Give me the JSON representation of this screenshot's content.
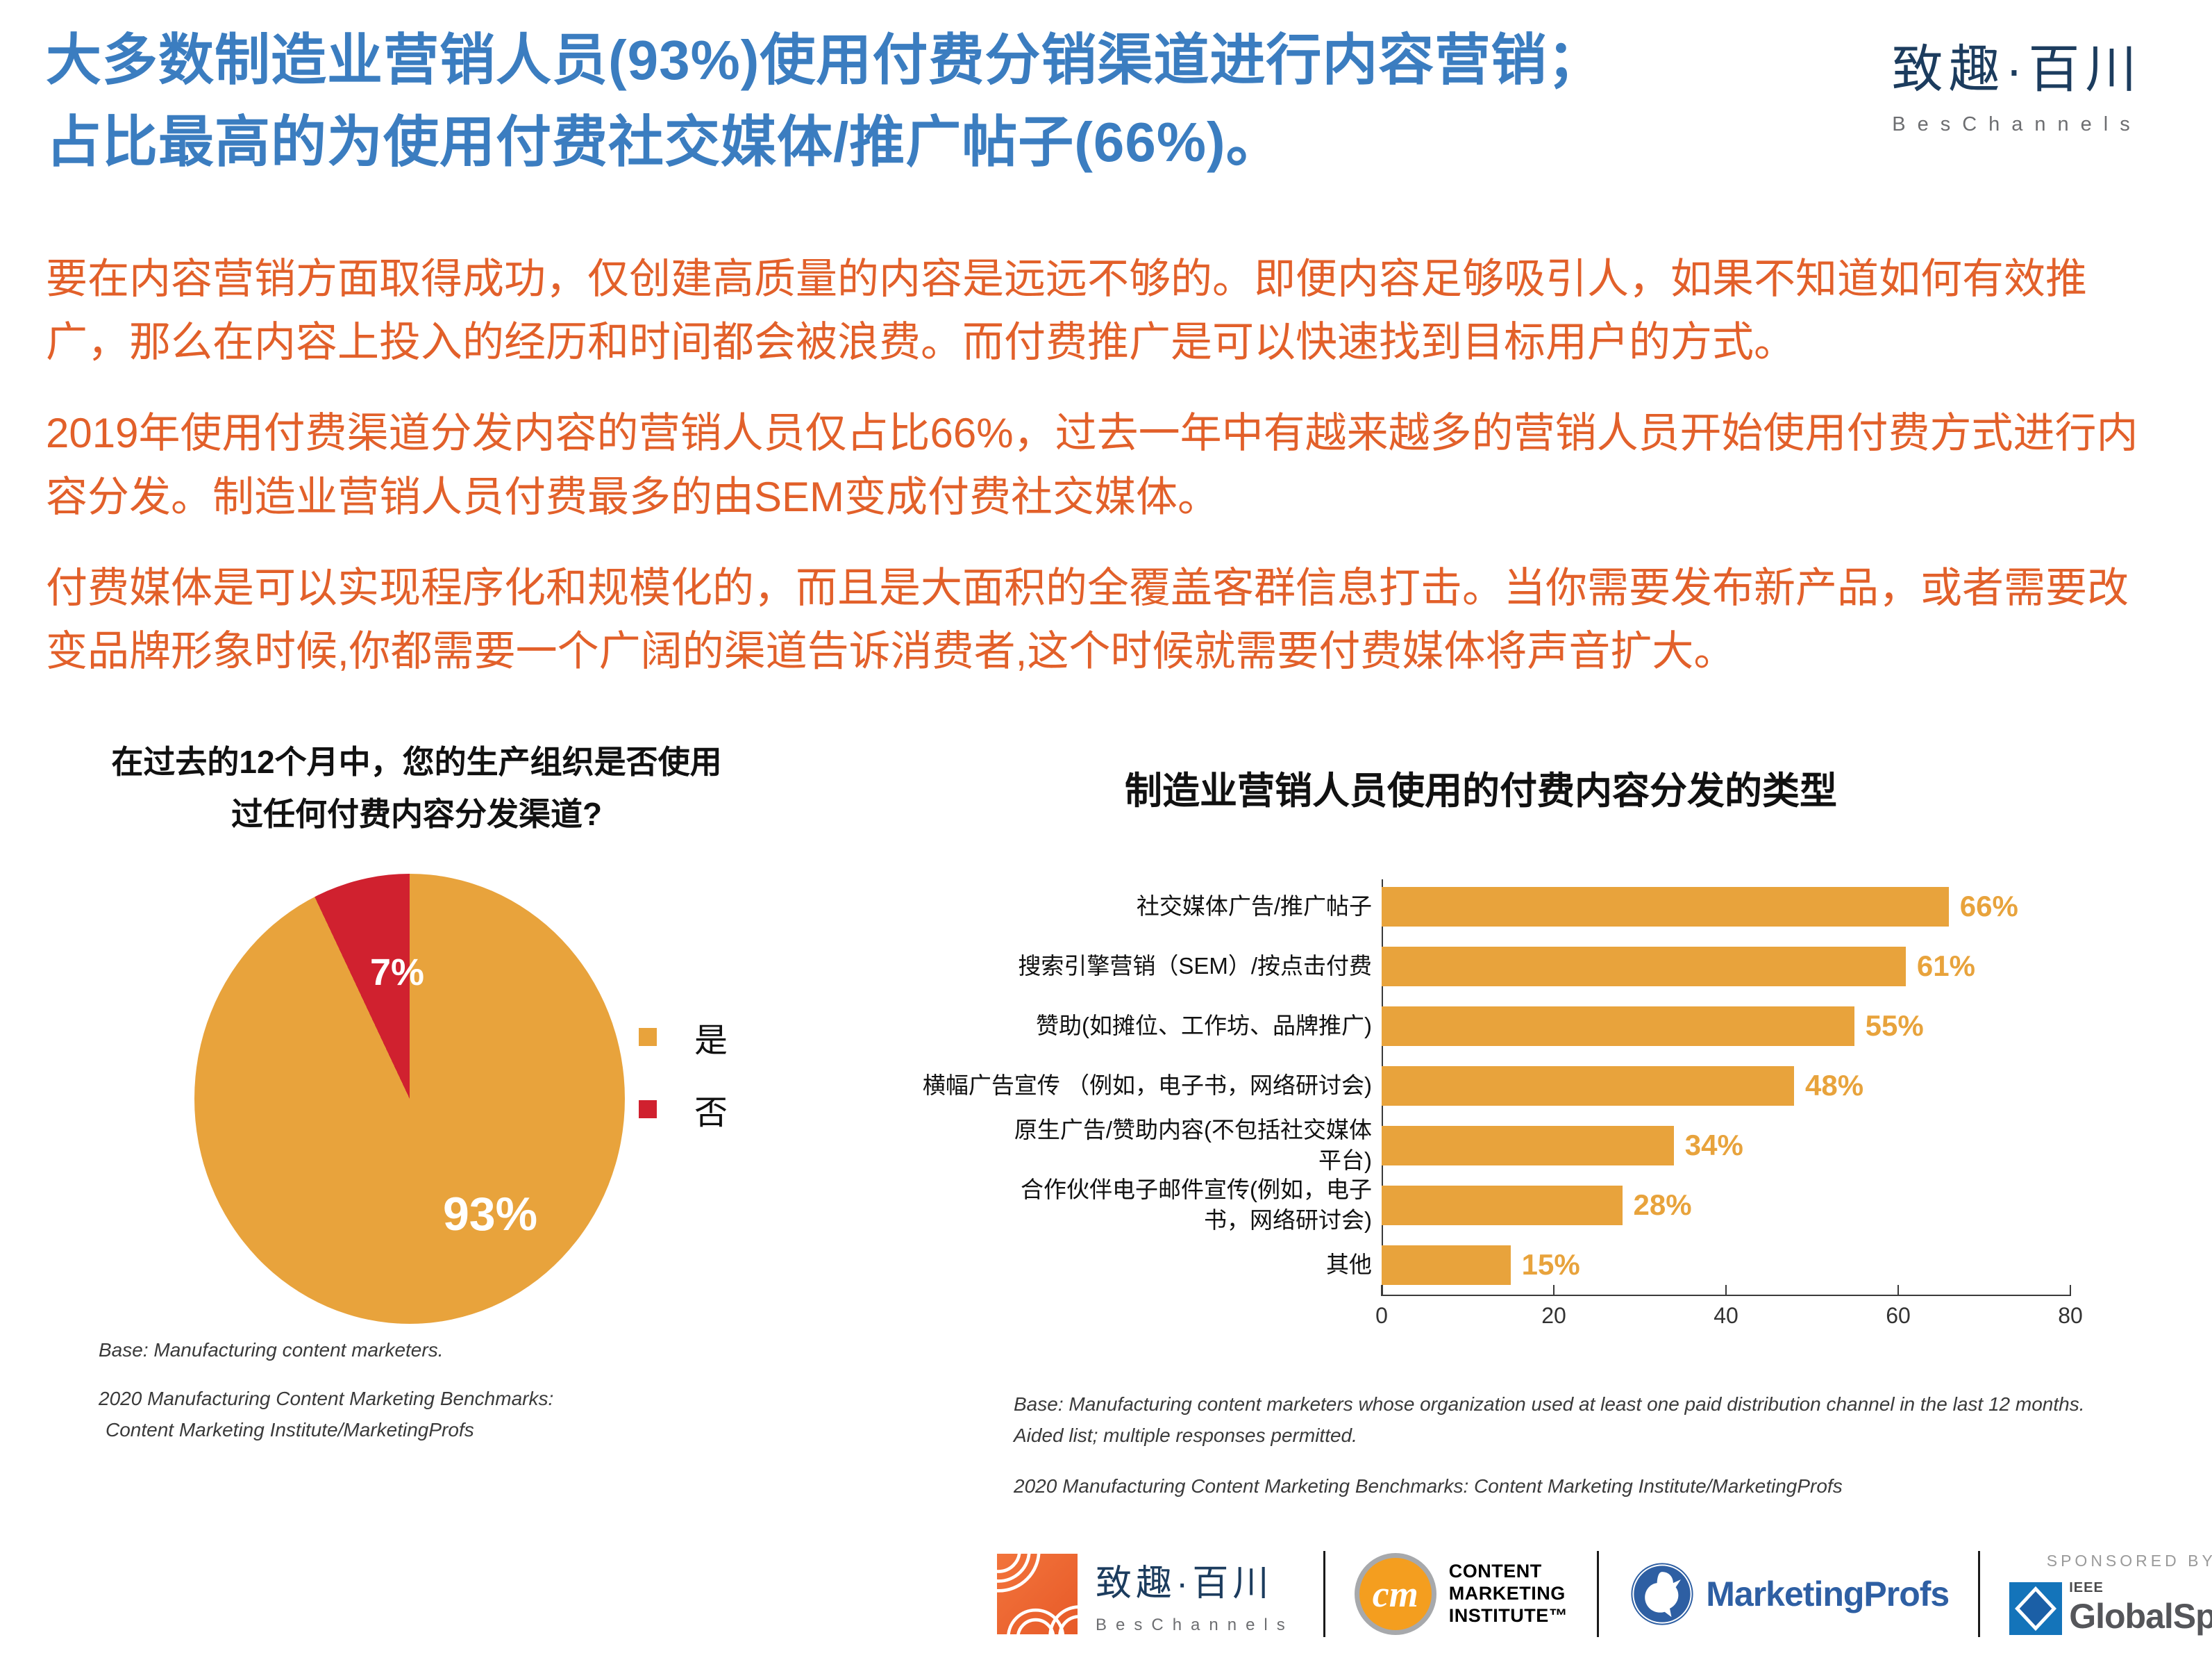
{
  "header": {
    "title_line1": "大多数制造业营销人员(93%)使用付费分销渠道进行内容营销；",
    "title_line2": "占比最高的为使用付费社交媒体/推广帖子(66%)。",
    "brand_cn": "致趣·百川",
    "brand_en": "BesChannels"
  },
  "paragraphs": {
    "p1": "要在内容营销方面取得成功，仅创建高质量的内容是远远不够的。即便内容足够吸引人，如果不知道如何有效推广，那么在内容上投入的经历和时间都会被浪费。而付费推广是可以快速找到目标用户的方式。",
    "p2": "2019年使用付费渠道分发内容的营销人员仅占比66%，过去一年中有越来越多的营销人员开始使用付费方式进行内容分发。制造业营销人员付费最多的由SEM变成付费社交媒体。",
    "p3": "付费媒体是可以实现程序化和规模化的，而且是大面积的全覆盖客群信息打击。当你需要发布新产品，或者需要改变品牌形象时候,你都需要一个广阔的渠道告诉消费者,这个时候就需要付费媒体将声音扩大。"
  },
  "pie_section": {
    "title_line1": "在过去的12个月中，您的生产组织是否使用",
    "title_line2": "过任何付费内容分发渠道?",
    "base_note": "Base: Manufacturing content marketers.",
    "source_line1": "2020 Manufacturing Content Marketing Benchmarks:",
    "source_line2": "Content Marketing Institute/MarketingProfs"
  },
  "bar_section": {
    "title": "制造业营销人员使用的付费内容分发的类型",
    "base_note_line1": "Base: Manufacturing content marketers whose organization used at least one paid distribution channel in the last 12 months.",
    "base_note_line2": "Aided list; multiple responses permitted.",
    "source": "2020 Manufacturing Content Marketing Benchmarks: Content Marketing Institute/MarketingProfs"
  },
  "chart_data": [
    {
      "type": "pie",
      "title": "在过去的12个月中，您的生产组织是否使用过任何付费内容分发渠道?",
      "labels": [
        "是",
        "否"
      ],
      "values": [
        93,
        7
      ],
      "value_labels": [
        "93%",
        "7%"
      ],
      "colors": [
        "#E8A33C",
        "#D0212F"
      ],
      "legend_position": "right"
    },
    {
      "type": "bar",
      "orientation": "horizontal",
      "title": "制造业营销人员使用的付费内容分发的类型",
      "categories": [
        "社交媒体广告/推广帖子",
        "搜索引擎营销（SEM）/按点击付费",
        "赞助(如摊位、工作坊、品牌推广)",
        "横幅广告宣传 （例如，电子书，网络研讨会)",
        "原生广告/赞助内容(不包括社交媒体\n平台)",
        "合作伙伴电子邮件宣传(例如，电子\n书，网络研讨会)",
        "其他"
      ],
      "values": [
        66,
        61,
        55,
        48,
        34,
        28,
        15
      ],
      "value_labels": [
        "66%",
        "61%",
        "55%",
        "48%",
        "34%",
        "28%",
        "15%"
      ],
      "xlim": [
        0,
        80
      ],
      "xticks": [
        0,
        20,
        40,
        60,
        80
      ],
      "bar_color": "#E8A33C",
      "grid": false
    }
  ],
  "colors": {
    "title_blue": "#3B7DC0",
    "body_orange": "#E2602A",
    "chart_orange": "#E8A33C",
    "chart_red": "#D0212F"
  },
  "footer": {
    "bes_cn": "致趣·百川",
    "bes_en": "BesChannels",
    "cmi_monogram": "cm",
    "cmi_line1": "CONTENT",
    "cmi_line2": "MARKETING",
    "cmi_line3": "INSTITUTE™",
    "marketingprofs": "MarketingProfs",
    "sponsored_by": "SPONSORED BY",
    "ieee": "IEEE",
    "globalspec": "GlobalSpec"
  }
}
